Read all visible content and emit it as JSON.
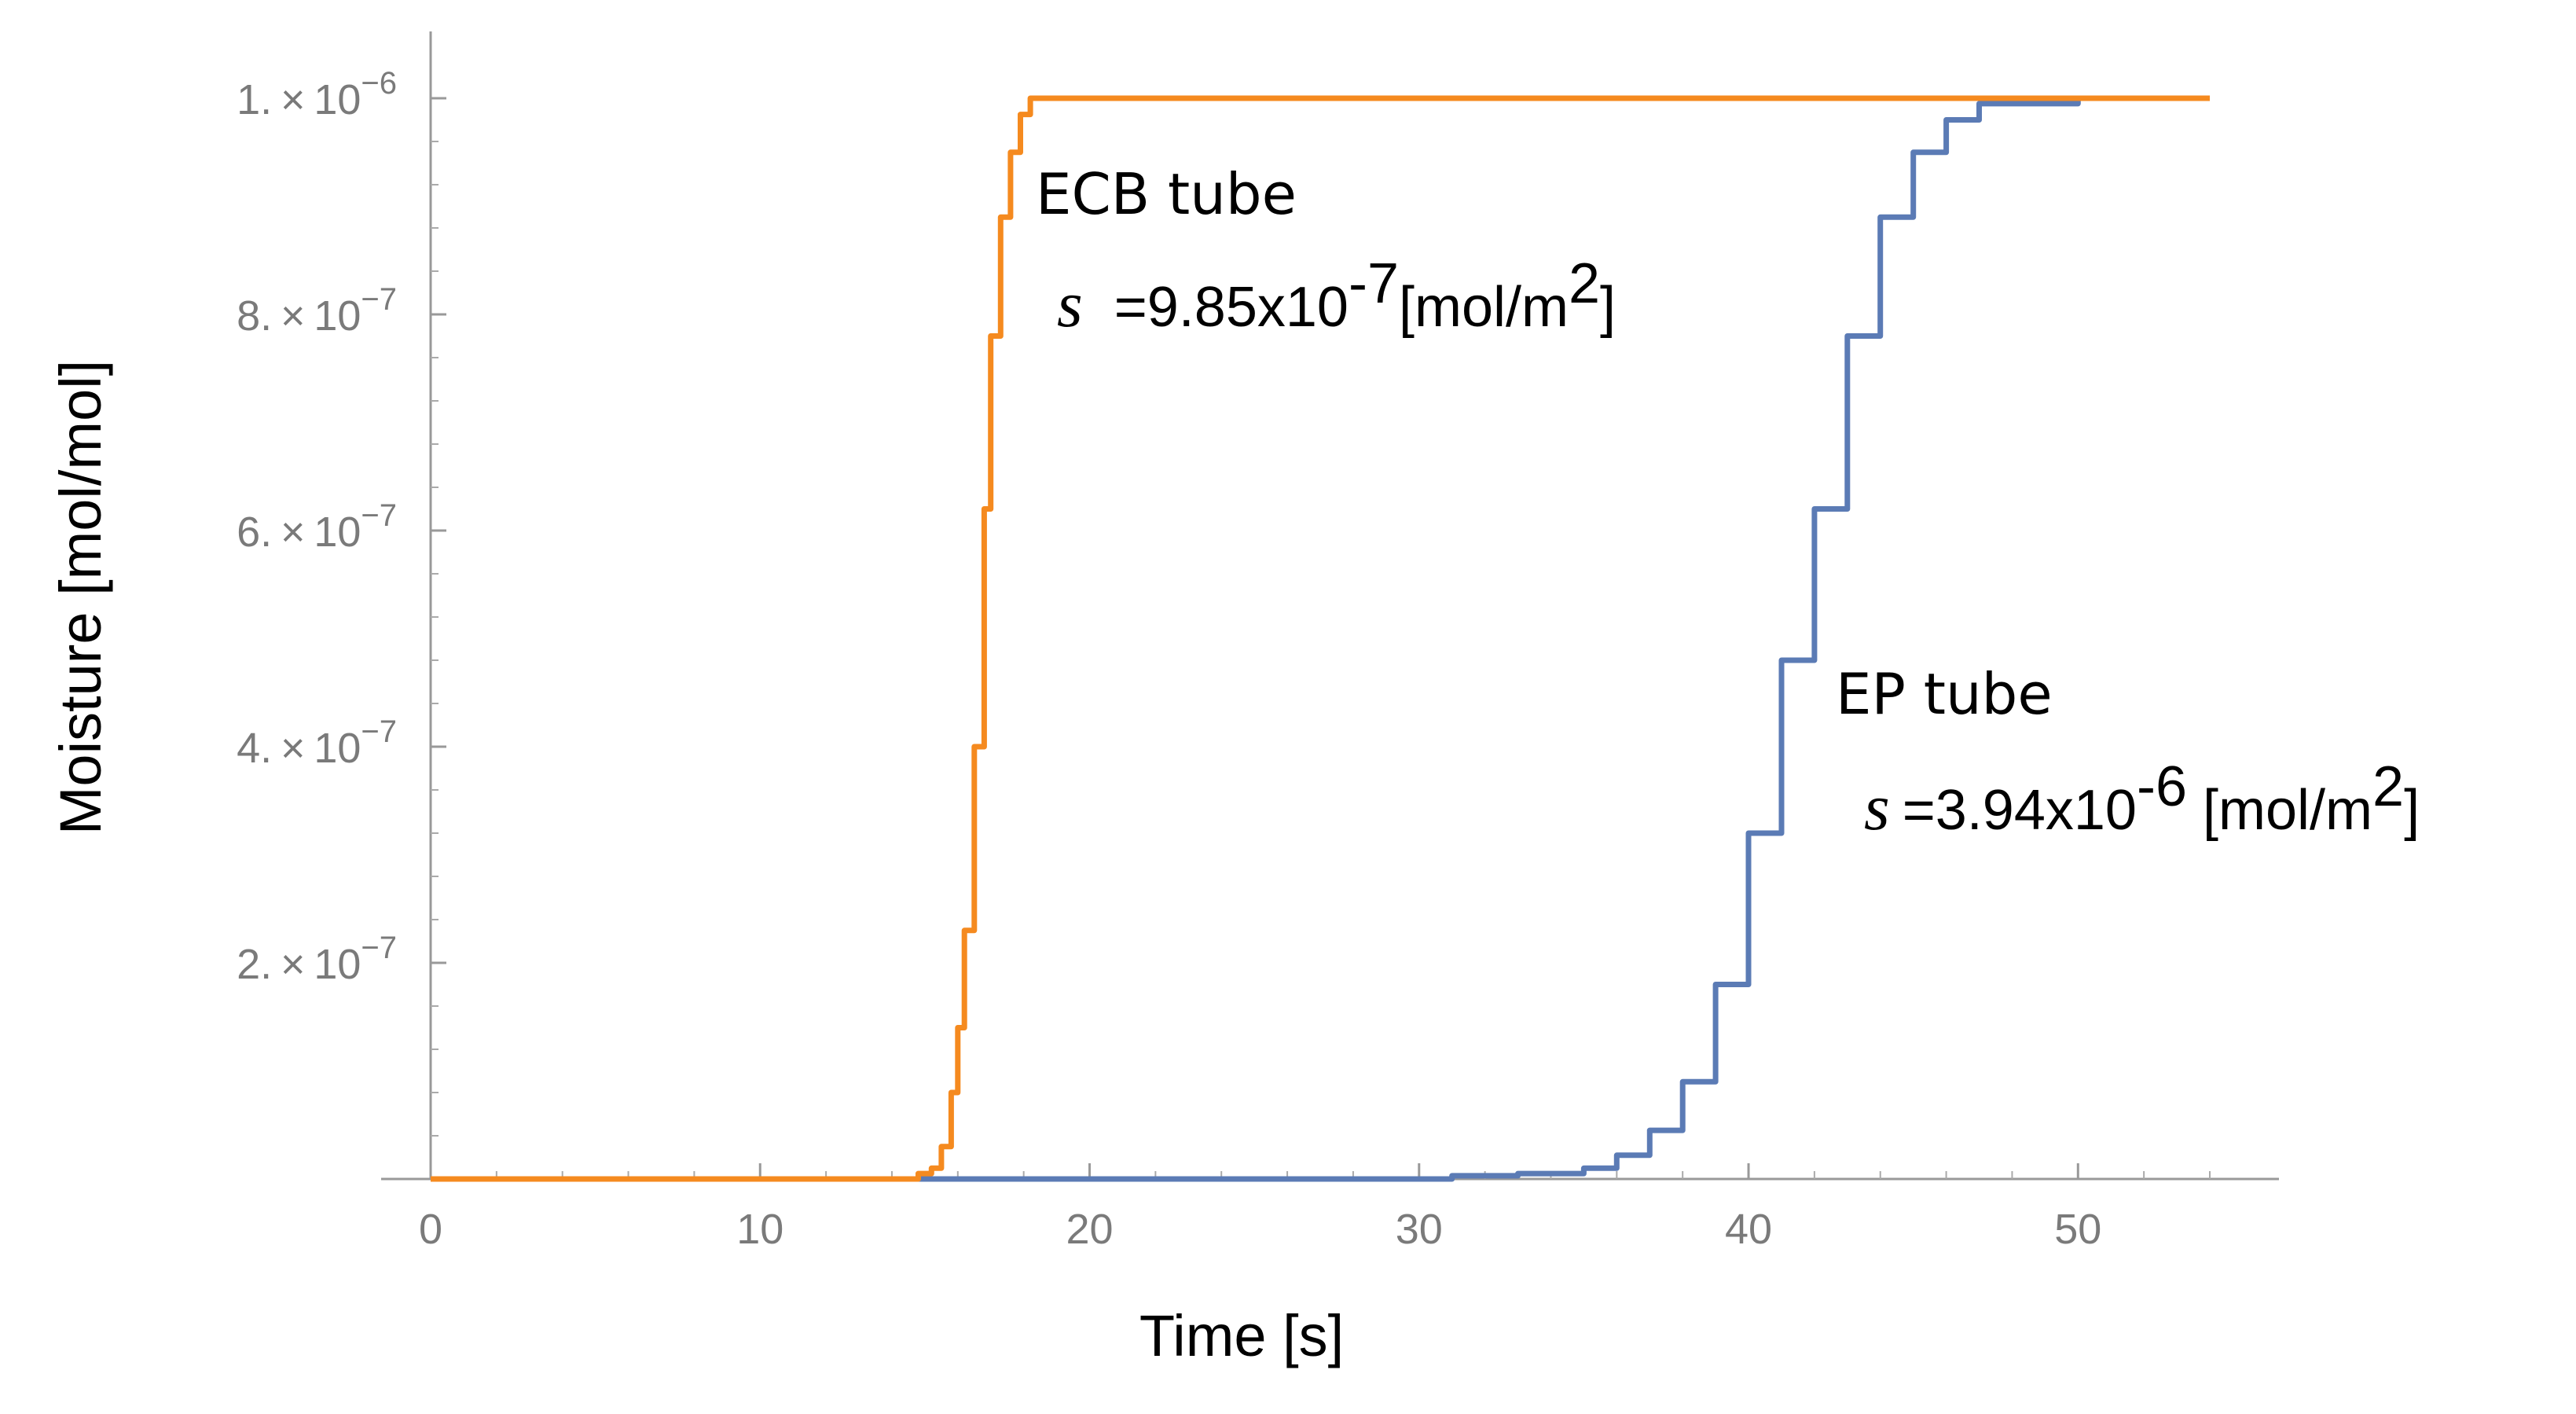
{
  "chart_data": {
    "type": "line",
    "title": "",
    "xlabel": "Time [s]",
    "ylabel": "Moisture [mol/mol]",
    "xlim": [
      0,
      54
    ],
    "ylim": [
      0,
      1e-06
    ],
    "x_ticks": [
      {
        "value": 0,
        "label": "0"
      },
      {
        "value": 10,
        "label": "10"
      },
      {
        "value": 20,
        "label": "20"
      },
      {
        "value": 30,
        "label": "30"
      },
      {
        "value": 40,
        "label": "40"
      },
      {
        "value": 50,
        "label": "50"
      }
    ],
    "y_ticks": [
      {
        "value": 2e-07,
        "mant": "2.",
        "exp": "−7"
      },
      {
        "value": 4e-07,
        "mant": "4.",
        "exp": "−7"
      },
      {
        "value": 6e-07,
        "mant": "6.",
        "exp": "−7"
      },
      {
        "value": 8e-07,
        "mant": "8.",
        "exp": "−7"
      },
      {
        "value": 1e-06,
        "mant": "1.",
        "exp": "−6"
      }
    ],
    "grid": false,
    "series": [
      {
        "name": "EP tube",
        "color": "#5b7bb5",
        "x": [
          0,
          14,
          31,
          33,
          35,
          36,
          37,
          38,
          39,
          40,
          41,
          42,
          43,
          44,
          45,
          46,
          47,
          50,
          54
        ],
        "y": [
          0,
          0,
          3e-09,
          5e-09,
          1e-08,
          2.2e-08,
          4.5e-08,
          9e-08,
          1.8e-07,
          3.2e-07,
          4.8e-07,
          6.2e-07,
          7.8e-07,
          8.9e-07,
          9.5e-07,
          9.8e-07,
          9.95e-07,
          1e-06,
          1e-06
        ]
      },
      {
        "name": "ECB tube",
        "color": "#f58a1f",
        "x": [
          0,
          14,
          14.8,
          15.2,
          15.5,
          15.8,
          16.0,
          16.2,
          16.5,
          16.8,
          17.0,
          17.3,
          17.6,
          17.9,
          18.2,
          20,
          54
        ],
        "y": [
          0,
          0,
          5e-09,
          1e-08,
          3e-08,
          8e-08,
          1.4e-07,
          2.3e-07,
          4e-07,
          6.2e-07,
          7.8e-07,
          8.9e-07,
          9.5e-07,
          9.85e-07,
          1e-06,
          1e-06,
          1e-06
        ]
      }
    ],
    "annotations": [
      {
        "series": "ECB tube",
        "label": "ECB tube",
        "symbol": "s",
        "eq": "=",
        "value": "9.85x10",
        "exp": "-7",
        "unit": "[mol/m",
        "unit_sup": "2",
        "unit_end": "]"
      },
      {
        "series": "EP tube",
        "label": "EP tube",
        "symbol": "s",
        "eq": "=",
        "value": "3.94x10",
        "exp": "-6",
        "unit": " [mol/m",
        "unit_sup": "2",
        "unit_end": "]"
      }
    ]
  }
}
